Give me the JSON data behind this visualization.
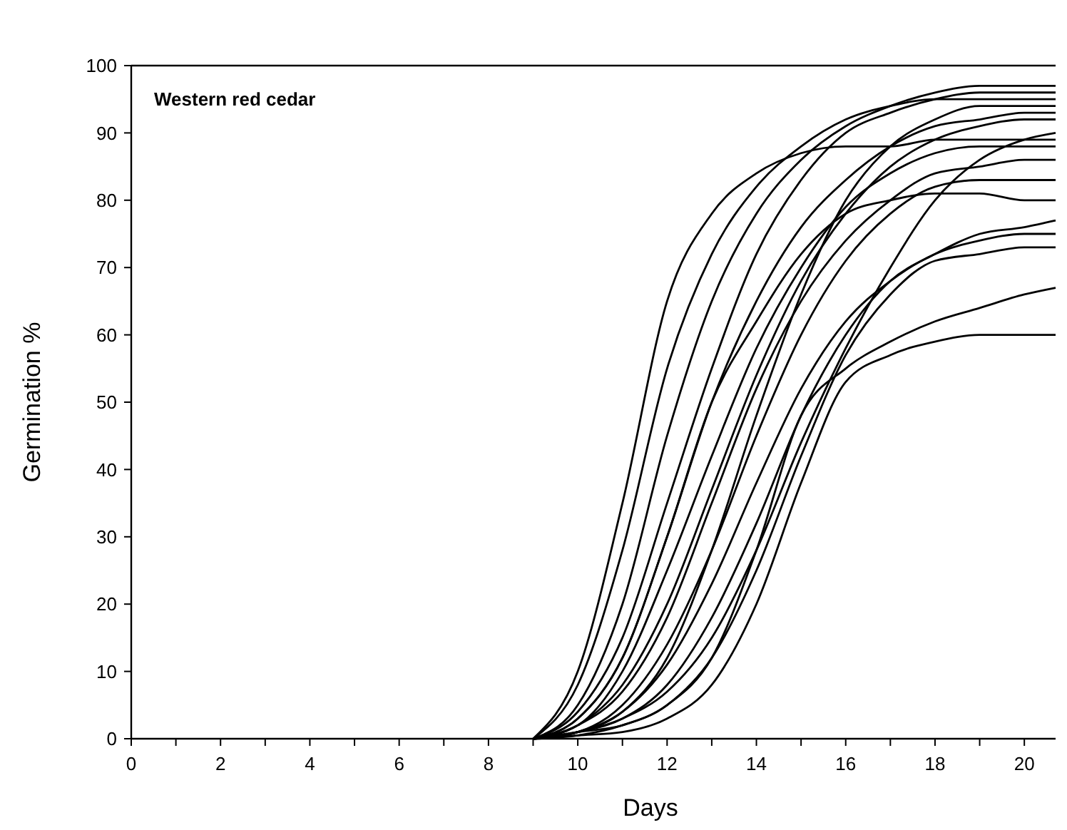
{
  "chart_data": {
    "type": "line",
    "title": "Western red cedar",
    "xlabel": "Days",
    "ylabel": "Germination %",
    "x": [
      9,
      10,
      11,
      12,
      13,
      14,
      15,
      16,
      17,
      18,
      19,
      20,
      20.7
    ],
    "xlim": [
      0,
      20.7
    ],
    "ylim": [
      0,
      100
    ],
    "xticks": [
      0,
      {
        "value": 1,
        "label": null
      },
      2,
      {
        "value": 3,
        "label": null
      },
      4,
      {
        "value": 5,
        "label": null
      },
      6,
      {
        "value": 7,
        "label": null
      },
      8,
      {
        "value": 9,
        "label": null
      },
      10,
      {
        "value": 11,
        "label": null
      },
      12,
      {
        "value": 13,
        "label": null
      },
      14,
      {
        "value": 15,
        "label": null
      },
      16,
      {
        "value": 17,
        "label": null
      },
      18,
      {
        "value": 19,
        "label": null
      },
      20
    ],
    "yticks": [
      0,
      10,
      20,
      30,
      40,
      50,
      60,
      70,
      80,
      90,
      100
    ],
    "grid": false,
    "marker": "none",
    "line_style": "solid",
    "series": [
      {
        "color": "#000000",
        "values": [
          0,
          10,
          35,
          65,
          78,
          84,
          87,
          88,
          88,
          89,
          89,
          89,
          89
        ]
      },
      {
        "color": "#000000",
        "values": [
          0,
          8,
          28,
          55,
          72,
          82,
          88,
          92,
          94,
          95,
          95,
          95,
          95
        ]
      },
      {
        "color": "#000000",
        "values": [
          0,
          5,
          20,
          45,
          65,
          78,
          86,
          91,
          94,
          96,
          97,
          97,
          97
        ]
      },
      {
        "color": "#000000",
        "values": [
          0,
          4,
          15,
          35,
          55,
          72,
          83,
          90,
          93,
          95,
          96,
          96,
          96
        ]
      },
      {
        "color": "#000000",
        "values": [
          0,
          3,
          12,
          30,
          50,
          65,
          76,
          83,
          88,
          91,
          92,
          93,
          93
        ]
      },
      {
        "color": "#000000",
        "values": [
          0,
          2,
          10,
          25,
          42,
          58,
          70,
          79,
          84,
          87,
          88,
          88,
          88
        ]
      },
      {
        "color": "#000000",
        "values": [
          0,
          2,
          8,
          20,
          37,
          54,
          68,
          78,
          85,
          89,
          91,
          92,
          92
        ]
      },
      {
        "color": "#000000",
        "values": [
          0,
          3,
          12,
          30,
          50,
          62,
          72,
          78,
          80,
          81,
          81,
          80,
          80
        ]
      },
      {
        "color": "#000000",
        "values": [
          0,
          2,
          7,
          18,
          35,
          52,
          65,
          74,
          80,
          84,
          85,
          86,
          86
        ]
      },
      {
        "color": "#000000",
        "values": [
          0,
          1,
          5,
          14,
          28,
          45,
          60,
          71,
          78,
          82,
          83,
          83,
          83
        ]
      },
      {
        "color": "#000000",
        "values": [
          0,
          1,
          4,
          11,
          23,
          38,
          52,
          62,
          68,
          72,
          74,
          75,
          75
        ]
      },
      {
        "color": "#000000",
        "values": [
          0,
          1,
          3,
          8,
          18,
          32,
          48,
          60,
          68,
          72,
          75,
          76,
          77
        ]
      },
      {
        "color": "#000000",
        "values": [
          0,
          1,
          3,
          7,
          15,
          28,
          44,
          58,
          70,
          80,
          86,
          89,
          90
        ]
      },
      {
        "color": "#000000",
        "values": [
          0,
          1,
          2,
          5,
          12,
          25,
          42,
          57,
          66,
          71,
          72,
          73,
          73
        ]
      },
      {
        "color": "#000000",
        "values": [
          0,
          0.5,
          2,
          5,
          12,
          28,
          48,
          55,
          59,
          62,
          64,
          66,
          67
        ]
      },
      {
        "color": "#000000",
        "values": [
          0,
          0.5,
          1,
          3,
          8,
          20,
          38,
          53,
          57,
          59,
          60,
          60,
          60
        ]
      },
      {
        "color": "#000000",
        "values": [
          0,
          1,
          4,
          12,
          28,
          48,
          66,
          80,
          88,
          92,
          94,
          94,
          94
        ]
      }
    ]
  }
}
